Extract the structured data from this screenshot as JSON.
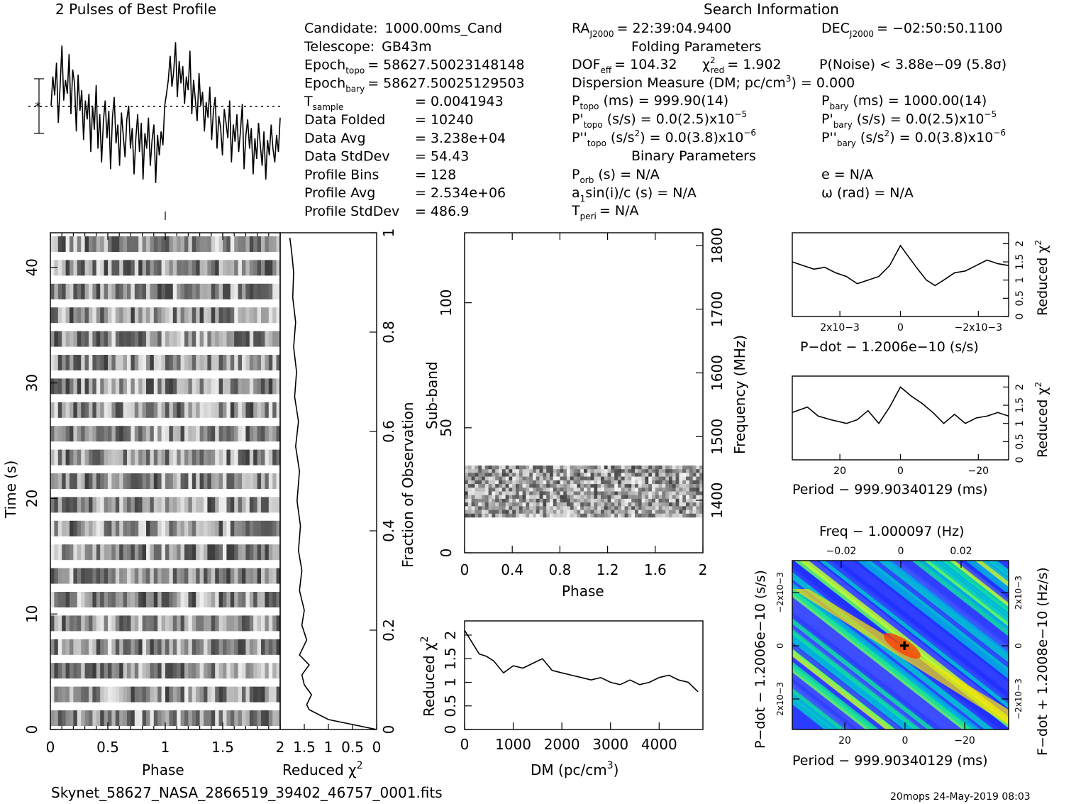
{
  "filename": "Skynet_58627_NASA_2866519_39402_46757_0001.fits",
  "footer_right": "20mops 24-May-2019 08:03",
  "header": {
    "profile_title": "2 Pulses of Best Profile",
    "search_title": "Search Information",
    "folding_title": "Folding Parameters",
    "binary_title": "Binary Parameters"
  },
  "info_left": [
    {
      "label": "Candidate:",
      "value": "1000.00ms_Cand"
    },
    {
      "label": "Telescope:",
      "value": "GB43m"
    },
    {
      "label": "Epoch",
      "sub": "topo",
      "value": "= 58627.50023148148"
    },
    {
      "label": "Epoch",
      "sub": "bary",
      "value": "= 58627.50025129503"
    },
    {
      "label": "T",
      "sub": "sample",
      "value": "=   0.0041943"
    },
    {
      "label": "Data Folded",
      "value": "=   10240"
    },
    {
      "label": "Data Avg",
      "value": "=   3.238e+04"
    },
    {
      "label": "Data StdDev",
      "value": "=   54.43"
    },
    {
      "label": "Profile Bins",
      "value": "=   128"
    },
    {
      "label": "Profile Avg",
      "value": "=   2.534e+06"
    },
    {
      "label": "Profile StdDev",
      "value": "=   486.9"
    }
  ],
  "info_mid": {
    "ra": "RA",
    "ra_sub": "J2000",
    "ra_value": "= 22:39:04.9400",
    "dof": "DOF",
    "dof_sub": "eff",
    "dof_value": "= 104.32",
    "chi_red_value": "= 1.902",
    "dm_line": "Dispersion Measure (DM; pc/cm",
    "dm_value": ") = 0.000",
    "ptopo_value": "(ms) =  999.90(14)",
    "pdtopo_value": "(s/s) = 0.0(2.5)x10",
    "pdtopo_exp": "−5",
    "pddtopo_value": "= 0.0(3.8)x10",
    "pddtopo_exp": "−6",
    "porb_value": "(s) = N/A",
    "asini_value": "sin(i)/c (s) = N/A",
    "tperi_value": "= N/A",
    "sub_topo": "topo",
    "sub_orb": "orb",
    "sub_peri": "peri"
  },
  "info_right": {
    "dec": "DEC",
    "dec_sub": "J2000",
    "dec_value": "= −02:50:50.1100",
    "pnoise": "P(Noise) < 3.88e−09   (5.8σ)",
    "pbary_value": "(ms) =   1000.00(14)",
    "pdbary_value": "(s/s) = 0.0(2.5)x10",
    "pdbary_exp": "−5",
    "pddbary_value": "= 0.0(3.8)x10",
    "pddbary_exp": "−6",
    "sub_bary": "bary",
    "ecc": "e = N/A",
    "omega": "ω (rad) = N/A"
  },
  "labels": {
    "time": "Time (s)",
    "phase": "Phase",
    "reduced_chi": "Reduced χ",
    "fraction": "Fraction of Observation",
    "subband": "Sub-band",
    "frequency": "Frequency (MHz)",
    "dm_axis": "DM (pc/cm",
    "pdot_axis": "P−dot − 1.2006e−10 (s/s)",
    "period_axis": "Period − 999.90340129 (ms)",
    "freq_axis": "Freq − 1.000097 (Hz)",
    "pdot_vert": "P−dot − 1.2006e−10 (s/s)",
    "fdot_vert": "F−dot + 1.2008e−10 (Hz/s)"
  },
  "colors": {
    "low": "#1a1aff",
    "mid": "#00e0c0",
    "high": "#ffee00",
    "peak": "#ff3000",
    "cross": "#000000"
  },
  "chart_data": [
    {
      "type": "line",
      "name": "best-profile",
      "title": "2 Pulses of Best Profile",
      "note": "two rotations of 128-bin profile, noise-like",
      "values": [
        0.55,
        0.72,
        0.61,
        0.8,
        0.45,
        0.66,
        0.9,
        0.58,
        0.7,
        0.62,
        0.85,
        0.5,
        0.76,
        0.68,
        0.4,
        0.73,
        0.52,
        0.64,
        0.35,
        0.58,
        0.47,
        0.62,
        0.28,
        0.55,
        0.41,
        0.67,
        0.3,
        0.5,
        0.22,
        0.46,
        0.58,
        0.36,
        0.52,
        0.18,
        0.48,
        0.6,
        0.33,
        0.44,
        0.2,
        0.51,
        0.38,
        0.25,
        0.47,
        0.55,
        0.3,
        0.42,
        0.15,
        0.36,
        0.5,
        0.28,
        0.45,
        0.12,
        0.39,
        0.3,
        0.48,
        0.2,
        0.35,
        0.44,
        0.1,
        0.38,
        0.26,
        0.4,
        0.32,
        0.55,
        0.62,
        0.7,
        0.84,
        0.66,
        0.75,
        0.92,
        0.6,
        0.81,
        0.68,
        0.78,
        0.56,
        0.72,
        0.64,
        0.87,
        0.5,
        0.7,
        0.58,
        0.46,
        0.74,
        0.55,
        0.63,
        0.4,
        0.57,
        0.48,
        0.66,
        0.35,
        0.52,
        0.6,
        0.3,
        0.49,
        0.42,
        0.26,
        0.53,
        0.45,
        0.36,
        0.58,
        0.22,
        0.44,
        0.34,
        0.5,
        0.28,
        0.4,
        0.56,
        0.18,
        0.38,
        0.47,
        0.3,
        0.42,
        0.15,
        0.36,
        0.24,
        0.45,
        0.32,
        0.2,
        0.4,
        0.12,
        0.35,
        0.26,
        0.44,
        0.3,
        0.22,
        0.38,
        0.28,
        0.48
      ]
    },
    {
      "type": "line",
      "name": "time-reduced-chi2",
      "xlabel": "Reduced χ2",
      "ylabel": "Fraction of Observation",
      "x_ticks": [
        "2",
        "1.5",
        "1",
        "0.5",
        "0"
      ],
      "y_ticks": [
        "0",
        "0.2",
        "0.4",
        "0.6",
        "0.8",
        "1"
      ],
      "points": [
        [
          0.0,
          0.0
        ],
        [
          0.5,
          0.01
        ],
        [
          1.0,
          0.02
        ],
        [
          1.4,
          0.04
        ],
        [
          1.45,
          0.05
        ],
        [
          1.35,
          0.07
        ],
        [
          1.5,
          0.09
        ],
        [
          1.55,
          0.11
        ],
        [
          1.4,
          0.13
        ],
        [
          1.6,
          0.15
        ],
        [
          1.45,
          0.18
        ],
        [
          1.55,
          0.21
        ],
        [
          1.5,
          0.24
        ],
        [
          1.6,
          0.28
        ],
        [
          1.55,
          0.32
        ],
        [
          1.62,
          0.36
        ],
        [
          1.58,
          0.41
        ],
        [
          1.65,
          0.46
        ],
        [
          1.6,
          0.52
        ],
        [
          1.68,
          0.57
        ],
        [
          1.62,
          0.62
        ],
        [
          1.7,
          0.67
        ],
        [
          1.66,
          0.72
        ],
        [
          1.72,
          0.77
        ],
        [
          1.68,
          0.82
        ],
        [
          1.74,
          0.87
        ],
        [
          1.72,
          0.92
        ],
        [
          1.76,
          0.96
        ],
        [
          1.8,
          0.99
        ]
      ]
    },
    {
      "type": "heatmap",
      "name": "time-vs-phase",
      "xlabel": "Phase",
      "ylabel": "Time (s)",
      "x_ticks": [
        "0",
        "0.5",
        "1",
        "1.5"
      ],
      "y_ticks": [
        "0",
        "10",
        "20",
        "30",
        "40"
      ],
      "xlim": [
        0,
        2
      ],
      "ylim": [
        0,
        43
      ]
    },
    {
      "type": "heatmap",
      "name": "subband-vs-phase",
      "xlabel": "Phase",
      "ylabel": "Sub-band",
      "x_ticks": [
        "0",
        "0.4",
        "0.8",
        "1.2",
        "1.6",
        "2"
      ],
      "y_ticks": [
        "0",
        "50",
        "100"
      ],
      "right_ticks": [
        "1400",
        "1500",
        "1600",
        "1700",
        "1800"
      ],
      "xlim": [
        0,
        2
      ],
      "ylim": [
        0,
        128
      ]
    },
    {
      "type": "line",
      "name": "dm-reduced-chi2",
      "xlabel": "DM (pc/cm3)",
      "ylabel": "Reduced χ2",
      "x_ticks": [
        "0",
        "1000",
        "2000",
        "3000",
        "4000"
      ],
      "y_ticks": [
        "0",
        "0.5",
        "1",
        "1.5",
        "2"
      ],
      "xlim": [
        0,
        4900
      ],
      "ylim": [
        0,
        2.3
      ],
      "points": [
        [
          0,
          2.1
        ],
        [
          150,
          1.85
        ],
        [
          300,
          1.6
        ],
        [
          450,
          1.55
        ],
        [
          600,
          1.45
        ],
        [
          800,
          1.2
        ],
        [
          1000,
          1.35
        ],
        [
          1200,
          1.3
        ],
        [
          1400,
          1.4
        ],
        [
          1600,
          1.5
        ],
        [
          1800,
          1.25
        ],
        [
          2000,
          1.2
        ],
        [
          2200,
          1.15
        ],
        [
          2400,
          1.1
        ],
        [
          2600,
          1.05
        ],
        [
          2800,
          1.1
        ],
        [
          3000,
          1.0
        ],
        [
          3200,
          0.95
        ],
        [
          3400,
          1.05
        ],
        [
          3600,
          0.95
        ],
        [
          3800,
          1.0
        ],
        [
          4000,
          1.1
        ],
        [
          4200,
          1.15
        ],
        [
          4400,
          1.05
        ],
        [
          4600,
          1.0
        ],
        [
          4800,
          0.8
        ]
      ]
    },
    {
      "type": "line",
      "name": "pdot-reduced-chi2",
      "xlabel": "P−dot − 1.2006e−10 (s/s)",
      "ylabel": "Reduced χ2",
      "x_ticks": [
        "2x10−3",
        "0",
        "−2x10−3"
      ],
      "y_ticks": [
        "0",
        "0.5",
        "1",
        "1.5",
        "2"
      ],
      "ylim": [
        0,
        2.3
      ],
      "points": [
        [
          0,
          1.5
        ],
        [
          0.05,
          1.4
        ],
        [
          0.1,
          1.3
        ],
        [
          0.15,
          1.35
        ],
        [
          0.2,
          1.2
        ],
        [
          0.25,
          1.1
        ],
        [
          0.3,
          0.9
        ],
        [
          0.35,
          1.0
        ],
        [
          0.4,
          1.1
        ],
        [
          0.45,
          1.4
        ],
        [
          0.5,
          1.95
        ],
        [
          0.53,
          1.7
        ],
        [
          0.58,
          1.3
        ],
        [
          0.62,
          1.0
        ],
        [
          0.66,
          0.85
        ],
        [
          0.7,
          1.0
        ],
        [
          0.75,
          1.2
        ],
        [
          0.8,
          1.25
        ],
        [
          0.85,
          1.4
        ],
        [
          0.9,
          1.55
        ],
        [
          0.95,
          1.45
        ],
        [
          1.0,
          1.4
        ]
      ]
    },
    {
      "type": "line",
      "name": "period-reduced-chi2",
      "xlabel": "Period − 999.90340129 (ms)",
      "ylabel": "Reduced χ2",
      "x_ticks": [
        "20",
        "0",
        "−20"
      ],
      "y_ticks": [
        "0",
        "0.5",
        "1",
        "1.5",
        "2"
      ],
      "ylim": [
        0,
        2.3
      ],
      "points": [
        [
          0,
          1.3
        ],
        [
          0.07,
          1.45
        ],
        [
          0.12,
          1.2
        ],
        [
          0.18,
          1.1
        ],
        [
          0.25,
          1.0
        ],
        [
          0.3,
          1.1
        ],
        [
          0.35,
          1.35
        ],
        [
          0.4,
          1.0
        ],
        [
          0.45,
          1.45
        ],
        [
          0.5,
          2.0
        ],
        [
          0.55,
          1.75
        ],
        [
          0.6,
          1.55
        ],
        [
          0.65,
          1.3
        ],
        [
          0.7,
          1.0
        ],
        [
          0.75,
          1.25
        ],
        [
          0.8,
          1.0
        ],
        [
          0.85,
          1.15
        ],
        [
          0.9,
          1.2
        ],
        [
          0.95,
          1.3
        ],
        [
          1.0,
          1.2
        ]
      ]
    },
    {
      "type": "heatmap",
      "name": "period-pdot-plane",
      "xlabel": "Period − 999.90340129 (ms)",
      "ylabel": "P−dot − 1.2006e−10 (s/s)",
      "top_label": "Freq − 1.000097 (Hz)",
      "right_label": "F−dot + 1.2008e−10 (Hz/s)",
      "x_ticks": [
        "20",
        "0",
        "−20"
      ],
      "top_ticks": [
        "−0.02",
        "0",
        "0.02"
      ],
      "y_ticks": [
        "−2x10−3",
        "0",
        "2x10−3"
      ],
      "right_ticks": [
        "2x10−3",
        "0",
        "−2x10−3"
      ]
    }
  ]
}
